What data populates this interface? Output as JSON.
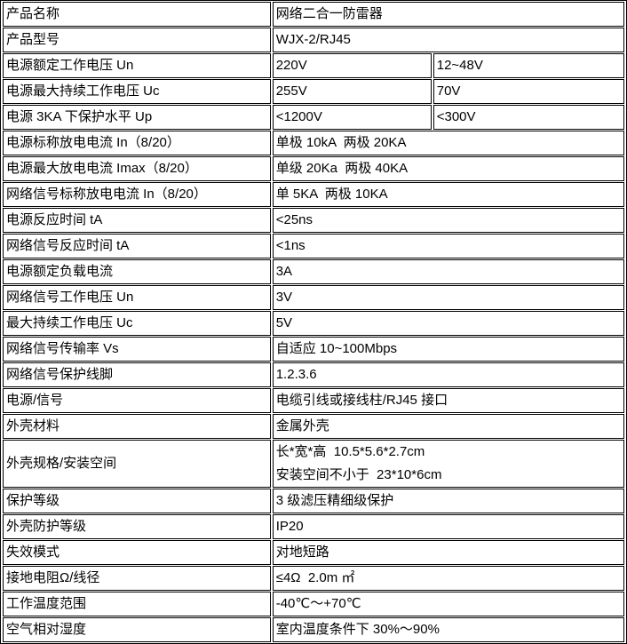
{
  "colors": {
    "border": "#000000",
    "text": "#000000",
    "background": "#ffffff"
  },
  "table": {
    "rows": [
      {
        "label": "产品名称",
        "values": [
          "网络二合一防雷器"
        ]
      },
      {
        "label": "产品型号",
        "values": [
          "WJX-2/RJ45"
        ]
      },
      {
        "label": "电源额定工作电压 Un",
        "values": [
          "220V",
          "12~48V"
        ]
      },
      {
        "label": "电源最大持续工作电压 Uc",
        "values": [
          "255V",
          "70V"
        ]
      },
      {
        "label": "电源 3KA 下保护水平 Up",
        "values": [
          "<1200V",
          "<300V"
        ]
      },
      {
        "label": "电源标称放电电流 In（8/20）",
        "values": [
          "单极 10kA  两极 20KA"
        ]
      },
      {
        "label": "电源最大放电电流 Imax（8/20）",
        "values": [
          "单级 20Ka  两极 40KA"
        ]
      },
      {
        "label": "网络信号标称放电电流 In（8/20）",
        "values": [
          "单 5KA  两极 10KA"
        ]
      },
      {
        "label": "电源反应时间 tA",
        "values": [
          "<25ns"
        ]
      },
      {
        "label": "网络信号反应时间 tA",
        "values": [
          "<1ns"
        ]
      },
      {
        "label": "电源额定负载电流",
        "values": [
          "3A"
        ]
      },
      {
        "label": "网络信号工作电压 Un",
        "values": [
          "3V"
        ]
      },
      {
        "label": "最大持续工作电压 Uc",
        "values": [
          "5V"
        ]
      },
      {
        "label": "网络信号传输率 Vs",
        "values": [
          "自适应 10~100Mbps"
        ]
      },
      {
        "label": "网络信号保护线脚",
        "values": [
          "1.2.3.6"
        ]
      },
      {
        "label": "电源/信号",
        "values": [
          "电缆引线或接线柱/RJ45 接口"
        ]
      },
      {
        "label": "外壳材料",
        "values": [
          "金属外壳"
        ]
      },
      {
        "label": "外壳规格/安装空间",
        "values": [
          "长*宽*高  10.5*5.6*2.7cm\n安装空间不小于  23*10*6cm"
        ]
      },
      {
        "label": "保护等级",
        "values": [
          "3 级滤压精细级保护"
        ]
      },
      {
        "label": "外壳防护等级",
        "values": [
          "IP20"
        ]
      },
      {
        "label": "失效模式",
        "values": [
          "对地短路"
        ]
      },
      {
        "label": "接地电阻Ω/线径",
        "values": [
          "≤4Ω  2.0m ㎡"
        ]
      },
      {
        "label": "工作温度范围",
        "values": [
          "-40℃～+70℃"
        ]
      },
      {
        "label": "空气相对湿度",
        "values": [
          "室内温度条件下 30%～90%"
        ]
      }
    ]
  }
}
